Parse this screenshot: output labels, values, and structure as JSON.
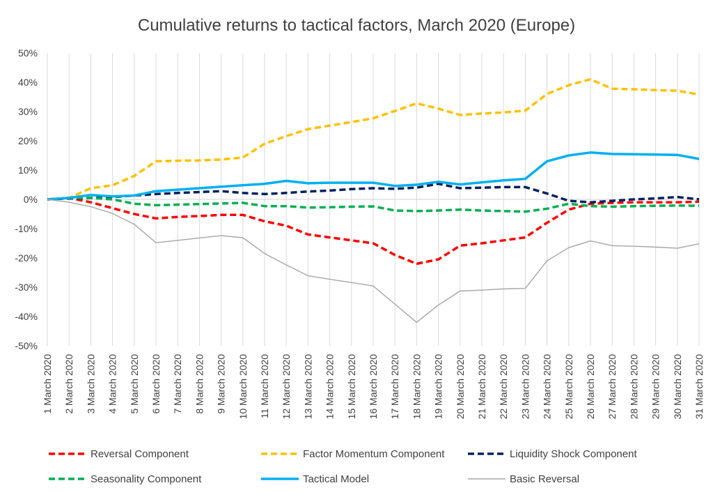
{
  "chart_data": {
    "type": "line",
    "title": "Cumulative returns to tactical factors, March 2020 (Europe)",
    "xlabel": "",
    "ylabel": "",
    "ylim": [
      -50,
      50
    ],
    "yticks": [
      "-50%",
      "-40%",
      "-30%",
      "-20%",
      "-10%",
      "0%",
      "10%",
      "20%",
      "30%",
      "40%",
      "50%"
    ],
    "ytick_values": [
      -50,
      -40,
      -30,
      -20,
      -10,
      0,
      10,
      20,
      30,
      40,
      50
    ],
    "grid": "vertical",
    "legend_position": "bottom",
    "x": [
      "1 March 2020",
      "2 March 2020",
      "3 March 2020",
      "4 March 2020",
      "5 March 2020",
      "6 March 2020",
      "7 March 2020",
      "8 March 2020",
      "9 March 2020",
      "10 March 2020",
      "11 March 2020",
      "12 March 2020",
      "13 March 2020",
      "14 March 2020",
      "15 March 2020",
      "16 March 2020",
      "17 March 2020",
      "18 March 2020",
      "19 March 2020",
      "20 March 2020",
      "21 March 2020",
      "22 March 2020",
      "23 March 2020",
      "24 March 2020",
      "25 March 2020",
      "26 March 2020",
      "27 March 2020",
      "28 March 2020",
      "29 March 2020",
      "30 March 2020",
      "31 March 2020"
    ],
    "series": [
      {
        "name": "Reversal Component",
        "color": "#ff0000",
        "style": "dashed",
        "values": [
          0,
          0.5,
          -1,
          -3,
          -5,
          -6.5,
          -6,
          -5.7,
          -5.3,
          -5.3,
          -7.5,
          -9,
          -12,
          -13,
          -14,
          -15,
          -19,
          -22,
          -20.5,
          -15.8,
          -15,
          -14,
          -13,
          -8,
          -3.5,
          -1.5,
          -1.2,
          -1,
          -1,
          -1,
          -0.8
        ]
      },
      {
        "name": "Factor Momentum Component",
        "color": "#ffc000",
        "style": "dashed",
        "values": [
          0,
          0.5,
          3.8,
          4.8,
          8,
          13,
          13.2,
          13.3,
          13.6,
          14.3,
          19,
          21.6,
          24,
          25.2,
          26.4,
          27.7,
          30.2,
          32.8,
          31,
          28.8,
          29.3,
          29.7,
          30.3,
          36,
          39,
          41,
          37.8,
          37.6,
          37.3,
          37.1,
          35.8
        ]
      },
      {
        "name": "Liquidity Shock Component",
        "color": "#002060",
        "style": "dashed",
        "values": [
          0,
          0.3,
          0.5,
          0.8,
          1.3,
          1.8,
          2.2,
          2.5,
          2.8,
          2.2,
          1.8,
          2.2,
          2.7,
          3,
          3.5,
          3.8,
          3.6,
          4,
          5.3,
          3.8,
          4,
          4.2,
          4.2,
          2,
          -0.5,
          -1,
          -0.5,
          0,
          0.3,
          0.8,
          0
        ]
      },
      {
        "name": "Seasonality Component",
        "color": "#00b050",
        "style": "dashed",
        "values": [
          0,
          0.5,
          0.5,
          0,
          -1.5,
          -2,
          -1.8,
          -1.6,
          -1.4,
          -1.2,
          -2.3,
          -2.3,
          -2.8,
          -2.7,
          -2.5,
          -2.4,
          -3.8,
          -4,
          -3.8,
          -3.5,
          -3.8,
          -4,
          -4.2,
          -3.2,
          -1.5,
          -2.3,
          -2.5,
          -2.3,
          -2.2,
          -2.1,
          -2.2
        ]
      },
      {
        "name": "Tactical Model",
        "color": "#00b0f0",
        "style": "solid",
        "values": [
          0,
          0.5,
          1.5,
          1,
          1.3,
          2.8,
          3.3,
          3.8,
          4.3,
          4.8,
          5.3,
          6.3,
          5.5,
          5.7,
          5.7,
          5.7,
          4.6,
          5,
          6,
          5.1,
          5.8,
          6.5,
          7,
          13,
          15,
          16,
          15.5,
          15.4,
          15.3,
          15.2,
          13.8
        ]
      },
      {
        "name": "Basic Reversal",
        "color": "#a6a6a6",
        "style": "thin",
        "values": [
          0,
          -1,
          -2.5,
          -4.8,
          -8.5,
          -14.8,
          -14,
          -13.2,
          -12.4,
          -13.1,
          -18.5,
          -22.4,
          -26.1,
          -27.3,
          -28.4,
          -29.6,
          -35.8,
          -42,
          -36.1,
          -31.3,
          -31,
          -30.6,
          -30.4,
          -21,
          -16.5,
          -14.2,
          -15.8,
          -16,
          -16.3,
          -16.7,
          -15.2
        ]
      }
    ]
  }
}
